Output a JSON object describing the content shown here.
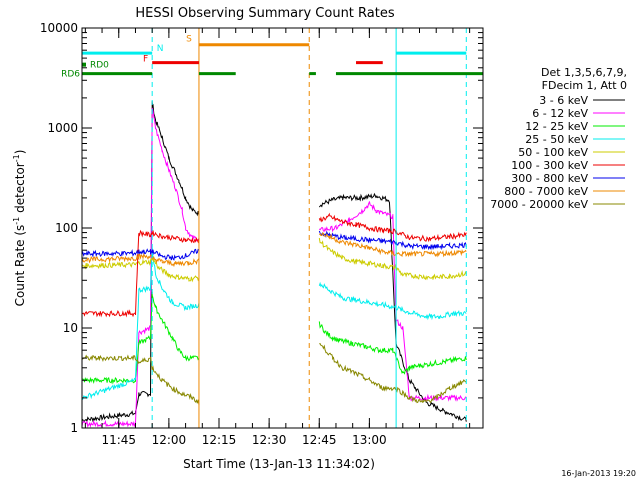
{
  "chart_data": {
    "type": "line",
    "title": "HESSI Observing Summary Count Rates",
    "xlabel": "Start Time (13-Jan-13 11:34:02)",
    "ylabel_main": "Count Rate (s",
    "ylabel_exp1": "-1",
    "ylabel_mid": " detector",
    "ylabel_exp2": "-1",
    "ylabel_end": ")",
    "y_scale": "log",
    "ylim": [
      1,
      10000
    ],
    "xlim_minutes": [
      0,
      120
    ],
    "x_ticks": [
      {
        "t": 11,
        "label": "11:45"
      },
      {
        "t": 26,
        "label": "12:00"
      },
      {
        "t": 41,
        "label": "12:15"
      },
      {
        "t": 56,
        "label": "12:30"
      },
      {
        "t": 71,
        "label": "12:45"
      },
      {
        "t": 86,
        "label": "13:00"
      }
    ],
    "y_ticks": [
      {
        "v": 1,
        "label": "1"
      },
      {
        "v": 10,
        "label": "10"
      },
      {
        "v": 100,
        "label": "100"
      },
      {
        "v": 1000,
        "label": "1000"
      },
      {
        "v": 10000,
        "label": "10000"
      }
    ],
    "legend": {
      "placement": "right",
      "header1": "Det 1,3,5,6,7,9,",
      "header2": "FDecim 1, Att 0",
      "entries": [
        {
          "label": "3 - 6 keV",
          "color": "#000000"
        },
        {
          "label": "6 - 12 keV",
          "color": "#ff00ff"
        },
        {
          "label": "12 - 25 keV",
          "color": "#00ee00"
        },
        {
          "label": "25 - 50 keV",
          "color": "#00eeee"
        },
        {
          "label": "50 - 100 keV",
          "color": "#cccc00"
        },
        {
          "label": "100 - 300 keV",
          "color": "#ee0000"
        },
        {
          "label": "300 - 800 keV",
          "color": "#0000ee"
        },
        {
          "label": "800 - 7000 keV",
          "color": "#ee8800"
        },
        {
          "label": "7000 - 20000 keV",
          "color": "#888800"
        }
      ]
    },
    "flags": [
      {
        "label": "RD0",
        "color": "#008800",
        "value": 4300,
        "segments": []
      },
      {
        "label": "RD6",
        "color": "#008800",
        "value": 3500,
        "segments": [
          [
            0,
            21
          ],
          [
            35,
            46
          ],
          [
            68,
            70
          ],
          [
            76,
            120
          ]
        ]
      },
      {
        "label": "",
        "color": "#00eeee",
        "value": 5600,
        "segments": [
          [
            0,
            21
          ],
          [
            94,
            115
          ]
        ]
      },
      {
        "label": "F",
        "color": "#ee0000",
        "value": 4500,
        "segments": [
          [
            21,
            35
          ],
          [
            82,
            90
          ]
        ]
      },
      {
        "label": "S",
        "color": "#ee8800",
        "value": 6800,
        "segments": [
          [
            35,
            68
          ]
        ]
      },
      {
        "label": "N",
        "color": "#00eeee",
        "value": 0,
        "segments": []
      }
    ],
    "vertical_markers": [
      {
        "t": 21,
        "color": "#00eeee",
        "style": "dashed"
      },
      {
        "t": 35,
        "color": "#ee8800",
        "style": "solid"
      },
      {
        "t": 68,
        "color": "#ee8800",
        "style": "dashed"
      },
      {
        "t": 94,
        "color": "#00eeee",
        "style": "solid"
      },
      {
        "t": 115,
        "color": "#00eeee",
        "style": "dashed"
      }
    ],
    "series": [
      {
        "name": "3 - 6 keV",
        "color": "#000000",
        "points": [
          [
            0,
            1.2
          ],
          [
            16,
            1.4
          ],
          [
            17,
            2.2
          ],
          [
            20.5,
            2.2
          ],
          [
            21,
            1800
          ],
          [
            22,
            1200
          ],
          [
            24,
            800
          ],
          [
            26,
            500
          ],
          [
            29,
            300
          ],
          [
            31,
            200
          ],
          [
            33,
            150
          ],
          [
            35,
            140
          ],
          [
            71,
            170
          ],
          [
            75,
            190
          ],
          [
            78,
            200
          ],
          [
            83,
            200
          ],
          [
            88,
            210
          ],
          [
            92,
            190
          ],
          [
            94,
            7
          ],
          [
            98,
            3
          ],
          [
            103,
            1.8
          ],
          [
            108,
            1.5
          ],
          [
            115,
            1.2
          ]
        ]
      },
      {
        "name": "6 - 12 keV",
        "color": "#ff00ff",
        "points": [
          [
            0,
            1.1
          ],
          [
            16,
            1.1
          ],
          [
            17,
            9
          ],
          [
            20.5,
            10
          ],
          [
            21,
            1600
          ],
          [
            22,
            1000
          ],
          [
            24,
            600
          ],
          [
            26,
            380
          ],
          [
            28,
            250
          ],
          [
            30,
            150
          ],
          [
            31,
            100
          ],
          [
            33,
            80
          ],
          [
            35,
            78
          ],
          [
            71,
            95
          ],
          [
            76,
            100
          ],
          [
            80,
            120
          ],
          [
            84,
            150
          ],
          [
            86,
            175
          ],
          [
            88,
            150
          ],
          [
            90,
            140
          ],
          [
            93,
            130
          ],
          [
            94,
            12
          ],
          [
            96,
            10
          ],
          [
            98,
            2
          ],
          [
            115,
            2
          ]
        ]
      },
      {
        "name": "12 - 25 keV",
        "color": "#00ee00",
        "points": [
          [
            0,
            3
          ],
          [
            16,
            3
          ],
          [
            17,
            7
          ],
          [
            20.5,
            8
          ],
          [
            21,
            22
          ],
          [
            22,
            16
          ],
          [
            24,
            12
          ],
          [
            27,
            8
          ],
          [
            29,
            6
          ],
          [
            31,
            5
          ],
          [
            35,
            5
          ],
          [
            71,
            11
          ],
          [
            73,
            9
          ],
          [
            75,
            8
          ],
          [
            77,
            7.5
          ],
          [
            81,
            7
          ],
          [
            85,
            6.5
          ],
          [
            89,
            6
          ],
          [
            93,
            6
          ],
          [
            94,
            5
          ],
          [
            96,
            3.5
          ],
          [
            98,
            4
          ],
          [
            101,
            4.2
          ],
          [
            115,
            5
          ]
        ]
      },
      {
        "name": "25 - 50 keV",
        "color": "#00eeee",
        "points": [
          [
            0,
            2
          ],
          [
            16,
            3
          ],
          [
            17,
            24
          ],
          [
            20.5,
            25
          ],
          [
            21,
            60
          ],
          [
            22,
            35
          ],
          [
            24,
            25
          ],
          [
            27,
            18
          ],
          [
            31,
            16
          ],
          [
            35,
            17
          ],
          [
            71,
            28
          ],
          [
            74,
            24
          ],
          [
            78,
            20
          ],
          [
            82,
            19
          ],
          [
            86,
            18
          ],
          [
            90,
            17
          ],
          [
            94,
            16
          ],
          [
            96,
            15
          ],
          [
            99,
            14
          ],
          [
            103,
            13
          ],
          [
            107,
            13
          ],
          [
            111,
            14
          ],
          [
            115,
            14
          ]
        ]
      },
      {
        "name": "50 - 100 keV",
        "color": "#cccc00",
        "points": [
          [
            0,
            42
          ],
          [
            16,
            43
          ],
          [
            17,
            45
          ],
          [
            20.5,
            46
          ],
          [
            21,
            50
          ],
          [
            23,
            40
          ],
          [
            26,
            34
          ],
          [
            29,
            32
          ],
          [
            32,
            31
          ],
          [
            35,
            32
          ],
          [
            71,
            75
          ],
          [
            74,
            60
          ],
          [
            78,
            50
          ],
          [
            82,
            46
          ],
          [
            86,
            44
          ],
          [
            90,
            42
          ],
          [
            94,
            40
          ],
          [
            96,
            34
          ],
          [
            100,
            33
          ],
          [
            105,
            32
          ],
          [
            110,
            33
          ],
          [
            115,
            35
          ]
        ]
      },
      {
        "name": "100 - 300 keV",
        "color": "#ee0000",
        "points": [
          [
            0,
            14
          ],
          [
            16,
            14
          ],
          [
            17,
            90
          ],
          [
            20.5,
            85
          ],
          [
            21,
            90
          ],
          [
            24,
            82
          ],
          [
            27,
            80
          ],
          [
            31,
            76
          ],
          [
            35,
            75
          ],
          [
            71,
            120
          ],
          [
            74,
            130
          ],
          [
            78,
            115
          ],
          [
            82,
            108
          ],
          [
            86,
            100
          ],
          [
            90,
            95
          ],
          [
            94,
            92
          ],
          [
            98,
            80
          ],
          [
            104,
            78
          ],
          [
            110,
            82
          ],
          [
            115,
            85
          ]
        ]
      },
      {
        "name": "300 - 800 keV",
        "color": "#0000ee",
        "points": [
          [
            0,
            55
          ],
          [
            16,
            56
          ],
          [
            17,
            58
          ],
          [
            20.5,
            58
          ],
          [
            21,
            58
          ],
          [
            24,
            52
          ],
          [
            28,
            50
          ],
          [
            32,
            54
          ],
          [
            35,
            60
          ],
          [
            71,
            90
          ],
          [
            74,
            85
          ],
          [
            78,
            80
          ],
          [
            82,
            78
          ],
          [
            86,
            76
          ],
          [
            90,
            74
          ],
          [
            94,
            72
          ],
          [
            98,
            66
          ],
          [
            104,
            65
          ],
          [
            110,
            66
          ],
          [
            115,
            68
          ]
        ]
      },
      {
        "name": "800 - 7000 keV",
        "color": "#ee8800",
        "points": [
          [
            0,
            48
          ],
          [
            16,
            50
          ],
          [
            17,
            52
          ],
          [
            20.5,
            52
          ],
          [
            21,
            50
          ],
          [
            24,
            46
          ],
          [
            28,
            44
          ],
          [
            32,
            45
          ],
          [
            35,
            47
          ],
          [
            71,
            90
          ],
          [
            74,
            82
          ],
          [
            78,
            72
          ],
          [
            82,
            68
          ],
          [
            86,
            63
          ],
          [
            90,
            58
          ],
          [
            94,
            55
          ],
          [
            98,
            55
          ],
          [
            104,
            55
          ],
          [
            110,
            56
          ],
          [
            115,
            58
          ]
        ]
      },
      {
        "name": "7000 - 20000 keV",
        "color": "#888800",
        "points": [
          [
            0,
            5
          ],
          [
            16,
            5
          ],
          [
            17,
            4.5
          ],
          [
            20.5,
            5
          ],
          [
            21,
            4
          ],
          [
            24,
            3
          ],
          [
            27,
            2.5
          ],
          [
            30,
            2.2
          ],
          [
            33,
            2
          ],
          [
            35,
            1.8
          ],
          [
            71,
            7
          ],
          [
            73,
            6
          ],
          [
            75,
            5
          ],
          [
            78,
            4
          ],
          [
            82,
            3.5
          ],
          [
            86,
            3
          ],
          [
            90,
            2.5
          ],
          [
            94,
            2.5
          ],
          [
            98,
            2
          ],
          [
            102,
            1.8
          ],
          [
            106,
            2
          ],
          [
            110,
            2.5
          ],
          [
            115,
            3
          ]
        ]
      }
    ]
  },
  "timestamp": "16-Jan-2013 19:20"
}
